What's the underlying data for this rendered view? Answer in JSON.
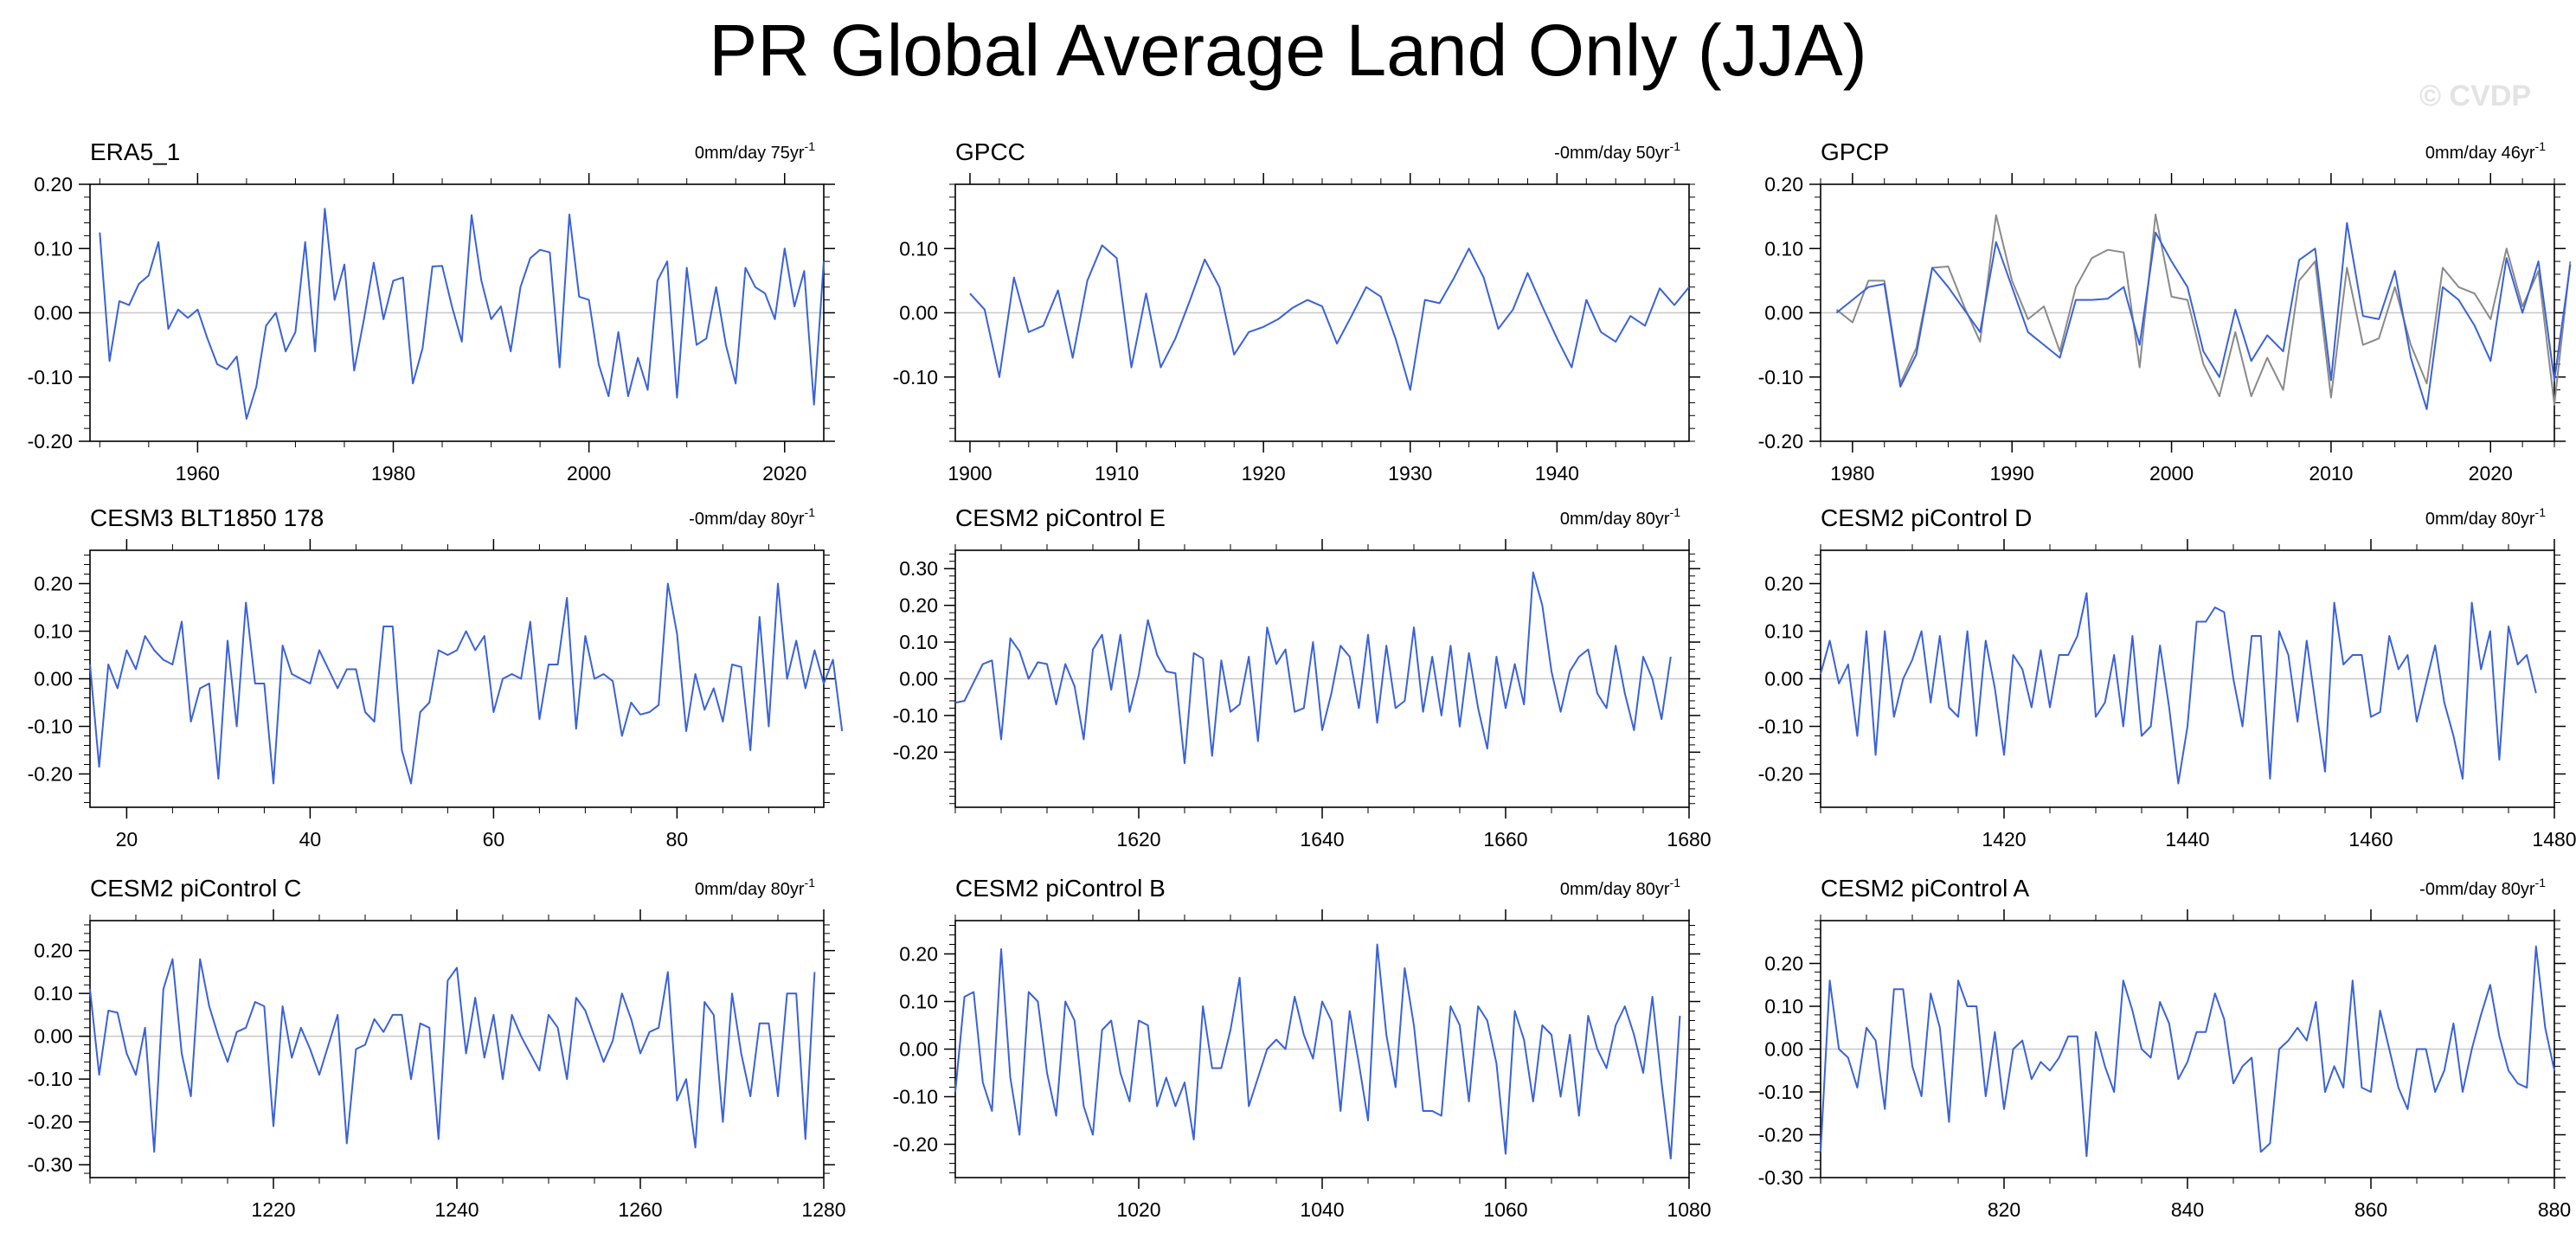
{
  "figure": {
    "title": "PR Global Average Land Only (JJA)",
    "watermark": "© CVDP"
  },
  "colors": {
    "primary": "#3a62d9",
    "reference": "#8a8a8a",
    "zero_line": "#c8c8c8"
  },
  "chart_data": [
    {
      "type": "line",
      "title": "ERA5_1",
      "trend_label": "0mm/day 75yr",
      "trend_sup": "-1",
      "xlim": [
        1949,
        2024
      ],
      "ylim": [
        -0.2,
        0.2
      ],
      "yticks": [
        -0.2,
        -0.1,
        0,
        0.1,
        0.2
      ],
      "ytick_labels": [
        "-0.20",
        "-0.10",
        "0.00",
        "0.10",
        "0.20"
      ],
      "xticks": [
        1960,
        1980,
        2000,
        2020
      ],
      "series": [
        {
          "x_start": 1950,
          "values": [
            0.125,
            -0.075,
            0.018,
            0.012,
            0.045,
            0.058,
            0.11,
            -0.025,
            0.005,
            -0.008,
            0.005,
            -0.04,
            -0.08,
            -0.088,
            -0.068,
            -0.165,
            -0.115,
            -0.02,
            0.0,
            -0.06,
            -0.03,
            0.11,
            -0.06,
            0.162,
            0.02,
            0.075,
            -0.09,
            -0.01,
            0.078,
            -0.01,
            0.05,
            0.055,
            -0.11,
            -0.055,
            0.072,
            0.073,
            0.01,
            -0.045,
            0.152,
            0.05,
            -0.01,
            0.01,
            -0.06,
            0.04,
            0.085,
            0.098,
            0.094,
            -0.085,
            0.153,
            0.025,
            0.02,
            -0.08,
            -0.13,
            -0.03,
            -0.13,
            -0.07,
            -0.12,
            0.05,
            0.08,
            -0.132,
            0.07,
            -0.05,
            -0.04,
            0.04,
            -0.05,
            -0.11,
            0.07,
            0.04,
            0.03,
            -0.01,
            0.1,
            0.01,
            0.065,
            -0.143,
            0.08
          ]
        }
      ]
    },
    {
      "type": "line",
      "title": "GPCC",
      "trend_label": "-0mm/day 50yr",
      "trend_sup": "-1",
      "xlim": [
        1899,
        1949
      ],
      "ylim": [
        -0.2,
        0.2
      ],
      "yticks": [
        -0.1,
        0,
        0.1
      ],
      "ytick_labels": [
        "-0.10",
        "0.00",
        "0.10"
      ],
      "xticks": [
        1900,
        1910,
        1920,
        1930,
        1940
      ],
      "series": [
        {
          "x_start": 1900,
          "values": [
            0.03,
            0.005,
            -0.1,
            0.055,
            -0.03,
            -0.02,
            0.035,
            -0.07,
            0.05,
            0.105,
            0.085,
            -0.085,
            0.03,
            -0.085,
            -0.04,
            0.02,
            0.083,
            0.04,
            -0.065,
            -0.03,
            -0.022,
            -0.01,
            0.008,
            0.02,
            0.01,
            -0.048,
            -0.005,
            0.04,
            0.025,
            -0.04,
            -0.12,
            0.02,
            0.015,
            0.055,
            0.1,
            0.055,
            -0.025,
            0.005,
            0.062,
            0.01,
            -0.04,
            -0.085,
            0.02,
            -0.03,
            -0.045,
            -0.005,
            -0.02,
            0.038,
            0.012,
            0.04
          ]
        }
      ]
    },
    {
      "type": "line",
      "title": "GPCP",
      "trend_label": "0mm/day 46yr",
      "trend_sup": "-1",
      "xlim": [
        1978,
        2024
      ],
      "ylim": [
        -0.2,
        0.2
      ],
      "yticks": [
        -0.2,
        -0.1,
        0,
        0.1,
        0.2
      ],
      "ytick_labels": [
        "-0.20",
        "-0.10",
        "0.00",
        "0.10",
        "0.20"
      ],
      "xticks": [
        1980,
        1990,
        2000,
        2010,
        2020
      ],
      "series": [
        {
          "x_start": 1979,
          "values": [
            0.005,
            -0.015,
            0.05,
            0.05,
            -0.11,
            -0.055,
            0.07,
            0.072,
            0.01,
            -0.045,
            0.152,
            0.05,
            -0.01,
            0.01,
            -0.06,
            0.04,
            0.085,
            0.098,
            0.094,
            -0.085,
            0.153,
            0.025,
            0.02,
            -0.08,
            -0.13,
            -0.03,
            -0.13,
            -0.07,
            -0.12,
            0.05,
            0.08,
            -0.132,
            0.07,
            -0.05,
            -0.04,
            0.04,
            -0.05,
            -0.11,
            0.07,
            0.04,
            0.03,
            -0.01,
            0.1,
            0.01,
            0.065,
            -0.143,
            0.08
          ]
        },
        {
          "x_start": 1979,
          "values": [
            0.0,
            0.02,
            0.04,
            0.045,
            -0.115,
            -0.065,
            0.07,
            0.04,
            0.005,
            -0.03,
            0.11,
            0.04,
            -0.03,
            -0.05,
            -0.07,
            0.02,
            0.02,
            0.022,
            0.04,
            -0.05,
            0.125,
            0.08,
            0.04,
            -0.06,
            -0.1,
            0.005,
            -0.075,
            -0.035,
            -0.06,
            0.082,
            0.1,
            -0.105,
            0.14,
            -0.005,
            -0.01,
            0.065,
            -0.07,
            -0.15,
            0.04,
            0.02,
            -0.02,
            -0.075,
            0.085,
            0.0,
            0.08,
            -0.105,
            0.075
          ]
        }
      ]
    },
    {
      "type": "line",
      "title": "CESM3 BLT1850 178",
      "trend_label": "-0mm/day 80yr",
      "trend_sup": "-1",
      "xlim": [
        16,
        96
      ],
      "ylim": [
        -0.27,
        0.27
      ],
      "yticks": [
        -0.2,
        -0.1,
        0,
        0.1,
        0.2
      ],
      "ytick_labels": [
        "-0.20",
        "-0.10",
        "0.00",
        "0.10",
        "0.20"
      ],
      "xticks": [
        20,
        40,
        60,
        80
      ],
      "series": [
        {
          "x_start": 16,
          "values": [
            0.03,
            -0.185,
            0.03,
            -0.02,
            0.06,
            0.02,
            0.09,
            0.06,
            0.04,
            0.03,
            0.12,
            -0.09,
            -0.02,
            -0.01,
            -0.21,
            0.08,
            -0.1,
            0.16,
            -0.01,
            -0.01,
            -0.22,
            0.07,
            0.01,
            0.0,
            -0.01,
            0.06,
            0.02,
            -0.02,
            0.02,
            0.02,
            -0.07,
            -0.09,
            0.11,
            0.11,
            -0.15,
            -0.22,
            -0.07,
            -0.05,
            0.06,
            0.05,
            0.06,
            0.1,
            0.06,
            0.09,
            -0.07,
            0.0,
            0.01,
            0.0,
            0.12,
            -0.085,
            0.03,
            0.03,
            0.17,
            -0.105,
            0.09,
            0.0,
            0.01,
            -0.005,
            -0.12,
            -0.05,
            -0.075,
            -0.07,
            -0.055,
            0.2,
            0.095,
            -0.11,
            0.01,
            -0.065,
            -0.02,
            -0.09,
            0.03,
            0.025,
            -0.15,
            0.13,
            -0.1,
            0.2,
            0.0,
            0.08,
            -0.02,
            0.06,
            -0.01,
            0.04,
            -0.11
          ]
        }
      ]
    },
    {
      "type": "line",
      "title": "CESM2 piControl E",
      "trend_label": "0mm/day 80yr",
      "trend_sup": "-1",
      "xlim": [
        1600,
        1680
      ],
      "ylim": [
        -0.35,
        0.35
      ],
      "yticks": [
        -0.2,
        -0.1,
        0,
        0.1,
        0.2,
        0.3
      ],
      "ytick_labels": [
        "-0.20",
        "-0.10",
        "0.00",
        "0.10",
        "0.20",
        "0.30"
      ],
      "xticks": [
        1620,
        1640,
        1660,
        1680
      ],
      "series": [
        {
          "x_start": 1600,
          "values": [
            -0.065,
            -0.06,
            -0.01,
            0.04,
            0.05,
            -0.165,
            0.11,
            0.075,
            0.0,
            0.045,
            0.04,
            -0.07,
            0.04,
            -0.02,
            -0.165,
            0.08,
            0.12,
            -0.03,
            0.12,
            -0.09,
            0.01,
            0.16,
            0.065,
            0.02,
            0.015,
            -0.23,
            0.07,
            0.055,
            -0.21,
            0.05,
            -0.09,
            -0.07,
            0.06,
            -0.17,
            0.14,
            0.04,
            0.08,
            -0.09,
            -0.08,
            0.1,
            -0.14,
            -0.04,
            0.09,
            0.06,
            -0.08,
            0.12,
            -0.12,
            0.09,
            -0.08,
            -0.06,
            0.14,
            -0.09,
            0.06,
            -0.1,
            0.09,
            -0.13,
            0.07,
            -0.08,
            -0.19,
            0.06,
            -0.08,
            0.04,
            -0.07,
            0.29,
            0.2,
            0.02,
            -0.09,
            0.02,
            0.06,
            0.08,
            -0.04,
            -0.08,
            0.09,
            -0.04,
            -0.14,
            0.06,
            0.0,
            -0.11,
            0.06
          ]
        }
      ]
    },
    {
      "type": "line",
      "title": "CESM2 piControl D",
      "trend_label": "0mm/day 80yr",
      "trend_sup": "-1",
      "xlim": [
        1400,
        1480
      ],
      "ylim": [
        -0.27,
        0.27
      ],
      "yticks": [
        -0.2,
        -0.1,
        0,
        0.1,
        0.2
      ],
      "ytick_labels": [
        "-0.20",
        "-0.10",
        "0.00",
        "0.10",
        "0.20"
      ],
      "xticks": [
        1420,
        1440,
        1460,
        1480
      ],
      "series": [
        {
          "x_start": 1400,
          "values": [
            0.01,
            0.08,
            -0.01,
            0.03,
            -0.12,
            0.1,
            -0.16,
            0.1,
            -0.08,
            0.0,
            0.04,
            0.1,
            -0.05,
            0.09,
            -0.06,
            -0.08,
            0.1,
            -0.12,
            0.08,
            -0.02,
            -0.16,
            0.05,
            0.02,
            -0.06,
            0.06,
            -0.06,
            0.05,
            0.05,
            0.09,
            0.18,
            -0.08,
            -0.05,
            0.05,
            -0.1,
            0.09,
            -0.12,
            -0.1,
            0.07,
            -0.06,
            -0.22,
            -0.1,
            0.12,
            0.12,
            0.15,
            0.14,
            0.0,
            -0.1,
            0.09,
            0.09,
            -0.21,
            0.1,
            0.05,
            -0.09,
            0.08,
            -0.06,
            -0.195,
            0.16,
            0.03,
            0.05,
            0.05,
            -0.08,
            -0.07,
            0.09,
            0.02,
            0.05,
            -0.09,
            -0.01,
            0.07,
            -0.05,
            -0.12,
            -0.21,
            0.16,
            0.02,
            0.1,
            -0.17,
            0.11,
            0.03,
            0.05,
            -0.03
          ]
        }
      ]
    },
    {
      "type": "line",
      "title": "CESM2 piControl C",
      "trend_label": "0mm/day 80yr",
      "trend_sup": "-1",
      "xlim": [
        1200,
        1280
      ],
      "ylim": [
        -0.33,
        0.27
      ],
      "yticks": [
        -0.3,
        -0.2,
        -0.1,
        0,
        0.1,
        0.2
      ],
      "ytick_labels": [
        "-0.30",
        "-0.20",
        "-0.10",
        "0.00",
        "0.10",
        "0.20"
      ],
      "xticks": [
        1220,
        1240,
        1260,
        1280
      ],
      "series": [
        {
          "x_start": 1200,
          "values": [
            0.11,
            -0.09,
            0.06,
            0.055,
            -0.04,
            -0.09,
            0.02,
            -0.27,
            0.11,
            0.18,
            -0.04,
            -0.14,
            0.18,
            0.07,
            0.0,
            -0.06,
            0.01,
            0.02,
            0.08,
            0.07,
            -0.21,
            0.07,
            -0.05,
            0.02,
            -0.03,
            -0.09,
            -0.02,
            0.05,
            -0.25,
            -0.03,
            -0.02,
            0.04,
            0.01,
            0.05,
            0.05,
            -0.1,
            0.03,
            0.02,
            -0.24,
            0.13,
            0.16,
            -0.04,
            0.09,
            -0.05,
            0.05,
            -0.1,
            0.05,
            0.0,
            -0.04,
            -0.08,
            0.05,
            0.02,
            -0.1,
            0.09,
            0.06,
            0.0,
            -0.06,
            -0.01,
            0.1,
            0.04,
            -0.04,
            0.01,
            0.02,
            0.15,
            -0.15,
            -0.1,
            -0.26,
            0.08,
            0.05,
            -0.2,
            0.1,
            -0.04,
            -0.14,
            0.03,
            0.03,
            -0.14,
            0.1,
            0.1,
            -0.24,
            0.15
          ]
        }
      ]
    },
    {
      "type": "line",
      "title": "CESM2 piControl B",
      "trend_label": "0mm/day 80yr",
      "trend_sup": "-1",
      "xlim": [
        1000,
        1080
      ],
      "ylim": [
        -0.27,
        0.27
      ],
      "yticks": [
        -0.2,
        -0.1,
        0,
        0.1,
        0.2
      ],
      "ytick_labels": [
        "-0.20",
        "-0.10",
        "0.00",
        "0.10",
        "0.20"
      ],
      "xticks": [
        1020,
        1040,
        1060,
        1080
      ],
      "series": [
        {
          "x_start": 1000,
          "values": [
            -0.09,
            0.11,
            0.12,
            -0.07,
            -0.13,
            0.21,
            -0.06,
            -0.18,
            0.12,
            0.1,
            -0.05,
            -0.14,
            0.1,
            0.06,
            -0.12,
            -0.18,
            0.04,
            0.06,
            -0.05,
            -0.11,
            0.06,
            0.05,
            -0.12,
            -0.06,
            -0.12,
            -0.07,
            -0.19,
            0.09,
            -0.04,
            -0.04,
            0.04,
            0.15,
            -0.12,
            -0.06,
            0.0,
            0.02,
            0.0,
            0.11,
            0.03,
            -0.02,
            0.1,
            0.06,
            -0.13,
            0.08,
            -0.03,
            -0.15,
            0.22,
            0.03,
            -0.08,
            0.17,
            0.05,
            -0.13,
            -0.13,
            -0.14,
            0.09,
            0.05,
            -0.11,
            0.09,
            0.06,
            -0.03,
            -0.22,
            0.08,
            0.02,
            -0.11,
            0.05,
            0.03,
            -0.1,
            0.03,
            -0.14,
            0.07,
            0.0,
            -0.04,
            0.05,
            0.09,
            0.03,
            -0.05,
            0.11,
            -0.07,
            -0.23,
            0.07
          ]
        }
      ]
    },
    {
      "type": "line",
      "title": "CESM2 piControl A",
      "trend_label": "-0mm/day 80yr",
      "trend_sup": "-1",
      "xlim": [
        800,
        880
      ],
      "ylim": [
        -0.3,
        0.3
      ],
      "yticks": [
        -0.3,
        -0.2,
        -0.1,
        0,
        0.1,
        0.2
      ],
      "ytick_labels": [
        "-0.30",
        "-0.20",
        "-0.10",
        "0.00",
        "0.10",
        "0.20"
      ],
      "xticks": [
        820,
        840,
        860,
        880
      ],
      "series": [
        {
          "x_start": 800,
          "values": [
            -0.24,
            0.16,
            0.0,
            -0.02,
            -0.09,
            0.05,
            0.02,
            -0.14,
            0.14,
            0.14,
            -0.04,
            -0.11,
            0.13,
            0.05,
            -0.17,
            0.16,
            0.1,
            0.1,
            -0.11,
            0.04,
            -0.14,
            0.0,
            0.02,
            -0.07,
            -0.03,
            -0.05,
            -0.02,
            0.03,
            0.03,
            -0.25,
            0.04,
            -0.04,
            -0.1,
            0.16,
            0.09,
            0.0,
            -0.02,
            0.11,
            0.06,
            -0.07,
            -0.03,
            0.04,
            0.04,
            0.13,
            0.07,
            -0.08,
            -0.04,
            -0.02,
            -0.24,
            -0.22,
            0.0,
            0.02,
            0.05,
            0.02,
            0.11,
            -0.1,
            -0.04,
            -0.09,
            0.16,
            -0.09,
            -0.1,
            0.09,
            0.0,
            -0.09,
            -0.14,
            0.0,
            0.0,
            -0.1,
            -0.05,
            0.06,
            -0.1,
            0.0,
            0.08,
            0.15,
            0.03,
            -0.05,
            -0.08,
            -0.09,
            0.24,
            0.05,
            -0.05
          ]
        }
      ]
    }
  ]
}
